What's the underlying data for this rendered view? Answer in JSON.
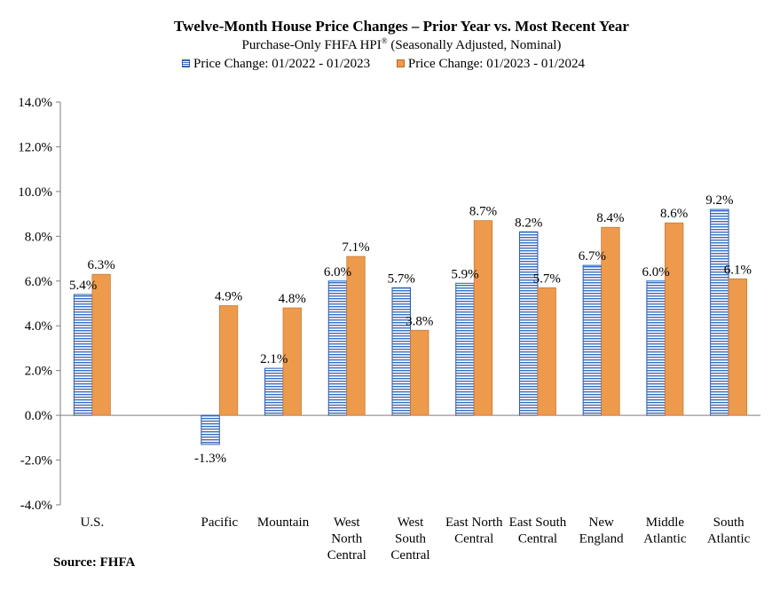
{
  "chart_data": {
    "type": "bar",
    "title": "Twelve-Month House Price Changes – Prior Year vs. Most Recent Year",
    "subtitle_main": "Purchase-Only FHFA HPI",
    "subtitle_mark": "®",
    "subtitle_rest": " (Seasonally Adjusted, Nominal)",
    "categories": [
      [
        "U.S."
      ],
      [
        "Pacific"
      ],
      [
        "Mountain"
      ],
      [
        "West",
        "North",
        "Central"
      ],
      [
        "West",
        "South",
        "Central"
      ],
      [
        "East North",
        "Central"
      ],
      [
        "East South",
        "Central"
      ],
      [
        "New",
        "England"
      ],
      [
        "Middle",
        "Atlantic"
      ],
      [
        "South",
        "Atlantic"
      ]
    ],
    "series": [
      {
        "name": "Price Change:  01/2022 - 01/2023",
        "color": "#3a6cc0",
        "values": [
          5.4,
          -1.3,
          2.1,
          6.0,
          5.7,
          5.9,
          8.2,
          6.7,
          6.0,
          9.2
        ],
        "labels": [
          "5.4%",
          "-1.3%",
          "2.1%",
          "6.0%",
          "5.7%",
          "5.9%",
          "8.2%",
          "6.7%",
          "6.0%",
          "9.2%"
        ]
      },
      {
        "name": "Price Change:  01/2023 - 01/2024",
        "color": "#ee9a4d",
        "values": [
          6.3,
          4.9,
          4.8,
          7.1,
          3.8,
          8.7,
          5.7,
          8.4,
          8.6,
          6.1
        ],
        "labels": [
          "6.3%",
          "4.9%",
          "4.8%",
          "7.1%",
          "3.8%",
          "8.7%",
          "5.7%",
          "8.4%",
          "8.6%",
          "6.1%"
        ]
      }
    ],
    "ylim": [
      -4.0,
      14.0
    ],
    "yticks": [
      -4.0,
      -2.0,
      0.0,
      2.0,
      4.0,
      6.0,
      8.0,
      10.0,
      12.0,
      14.0
    ],
    "ytick_labels": [
      "-4.0%",
      "-2.0%",
      "0.0%",
      "2.0%",
      "4.0%",
      "6.0%",
      "8.0%",
      "10.0%",
      "12.0%",
      "14.0%"
    ],
    "grid": false,
    "legend_position": "top"
  },
  "source": "Source: FHFA"
}
